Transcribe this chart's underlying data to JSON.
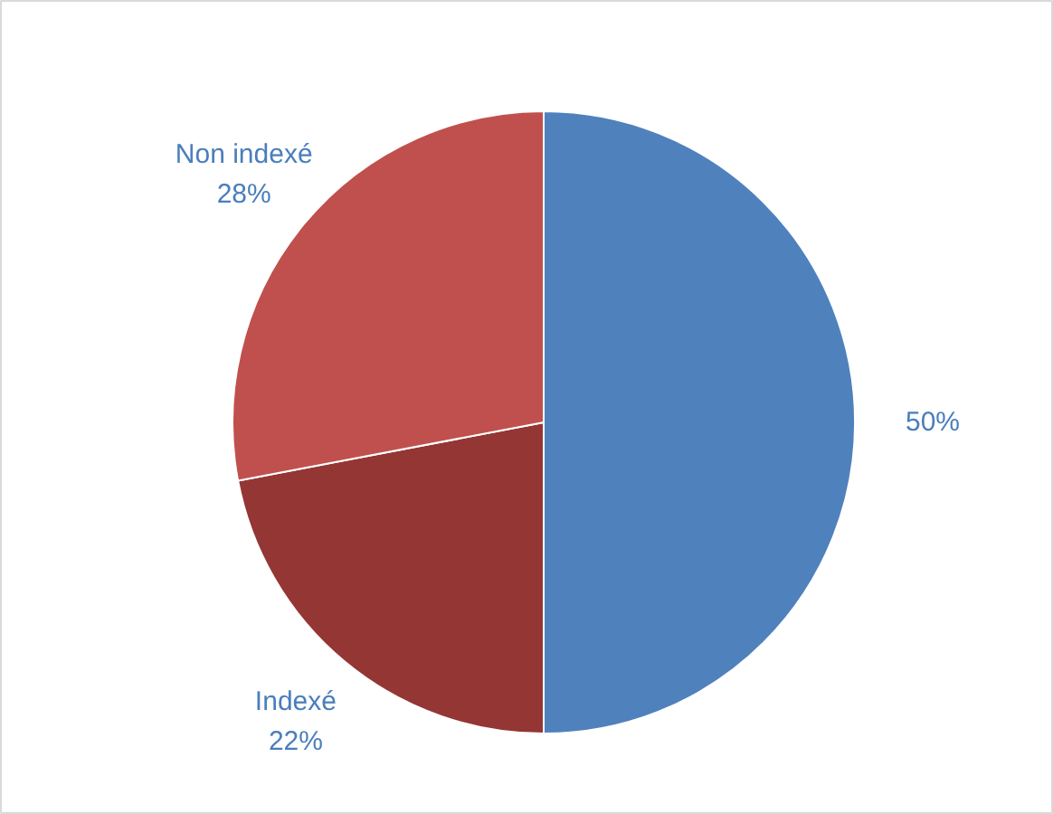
{
  "chart_data": {
    "type": "pie",
    "categories": [
      null,
      "Indexé",
      "Non indexé"
    ],
    "values": [
      50,
      22,
      28
    ],
    "colors": [
      "#4f81bd",
      "#943634",
      "#c0504d"
    ],
    "value_labels": [
      "50%",
      "22%",
      "28%"
    ]
  }
}
